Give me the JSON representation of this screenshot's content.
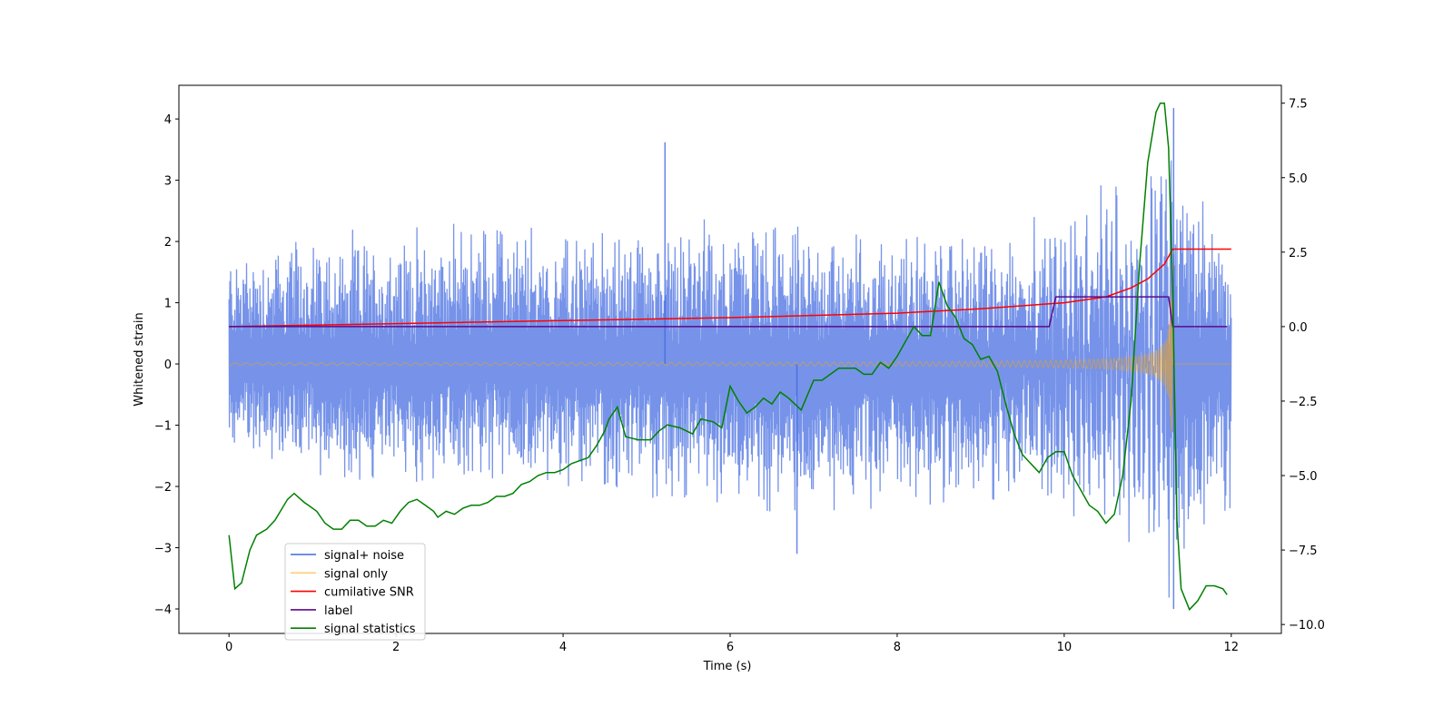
{
  "chart_data": {
    "type": "line",
    "xlabel": "Time (s)",
    "ylabel": "Whitened strain",
    "y2label": "",
    "xlim": [
      -0.6,
      12.6
    ],
    "ylim": [
      -4.4,
      4.55
    ],
    "y2lim": [
      -10.3,
      8.1
    ],
    "xticks": [
      0,
      2,
      4,
      6,
      8,
      10,
      12
    ],
    "yticks": [
      -4,
      -3,
      -2,
      -1,
      0,
      1,
      2,
      3,
      4
    ],
    "y2ticks": [
      -10.0,
      -7.5,
      -5.0,
      -2.5,
      0.0,
      2.5,
      5.0,
      7.5
    ],
    "y2tick_labels": [
      "−10.0",
      "−7.5",
      "−5.0",
      "−2.5",
      "0.0",
      "2.5",
      "5.0",
      "7.5"
    ],
    "legend_position": "lower-left",
    "colors": {
      "noise": "#4169e1",
      "signal": "#ffa500",
      "snr": "#ff0000",
      "label": "#5b0a8c",
      "stats": "#008000"
    },
    "series": [
      {
        "name": "signal+ noise",
        "axis": "left",
        "color": "#4169e1",
        "envelope": {
          "x": [
            0,
            1,
            2,
            3,
            4,
            5,
            6,
            7,
            8,
            9,
            10,
            11,
            11.3,
            12
          ],
          "upper": [
            2.3,
            2.5,
            2.5,
            2.8,
            2.6,
            2.6,
            2.8,
            2.6,
            2.5,
            2.6,
            2.6,
            2.7,
            4.2,
            2.2
          ],
          "lower": [
            -1.6,
            -2.2,
            -2.4,
            -2.3,
            -2.3,
            -2.7,
            -2.6,
            -3.1,
            -2.8,
            -2.6,
            -2.6,
            -2.7,
            -4.0,
            -2.7
          ]
        },
        "peaks": [
          {
            "x": 5.22,
            "y": 3.62
          },
          {
            "x": 6.8,
            "y": -3.1
          },
          {
            "x": 11.31,
            "y": 4.18
          },
          {
            "x": 11.31,
            "y": -4.0
          }
        ]
      },
      {
        "name": "signal only",
        "axis": "left",
        "color": "#ffa500",
        "chirp": {
          "t_merge": 11.3,
          "amp_end": 1.7,
          "end": 12
        }
      },
      {
        "name": "cumilative SNR",
        "axis": "right",
        "color": "#ff0000",
        "x": [
          0,
          2,
          4,
          6,
          8,
          9,
          10,
          10.5,
          10.8,
          11,
          11.2,
          11.3,
          12
        ],
        "values": [
          0.0,
          0.1,
          0.2,
          0.3,
          0.45,
          0.6,
          0.8,
          1.0,
          1.3,
          1.6,
          2.1,
          2.6,
          2.6
        ]
      },
      {
        "name": "label",
        "axis": "right",
        "color": "#5b0a8c",
        "x": [
          0,
          9.82,
          9.9,
          11.25,
          11.3,
          11.95
        ],
        "values": [
          0,
          0,
          1,
          1,
          0,
          0
        ]
      },
      {
        "name": "signal statistics",
        "axis": "right",
        "color": "#008000",
        "x": [
          0,
          0.07,
          0.15,
          0.25,
          0.33,
          0.45,
          0.55,
          0.7,
          0.78,
          0.9,
          0.95,
          1.05,
          1.15,
          1.25,
          1.35,
          1.45,
          1.55,
          1.65,
          1.75,
          1.85,
          1.95,
          2.05,
          2.15,
          2.25,
          2.35,
          2.45,
          2.5,
          2.6,
          2.7,
          2.8,
          2.9,
          3.0,
          3.1,
          3.2,
          3.3,
          3.4,
          3.5,
          3.6,
          3.7,
          3.8,
          3.9,
          4.0,
          4.1,
          4.2,
          4.3,
          4.4,
          4.5,
          4.55,
          4.65,
          4.75,
          4.9,
          5.05,
          5.15,
          5.25,
          5.4,
          5.55,
          5.65,
          5.8,
          5.9,
          6.0,
          6.1,
          6.2,
          6.3,
          6.4,
          6.5,
          6.6,
          6.7,
          6.85,
          7.0,
          7.1,
          7.2,
          7.3,
          7.4,
          7.5,
          7.6,
          7.7,
          7.8,
          7.9,
          8.0,
          8.1,
          8.2,
          8.3,
          8.4,
          8.5,
          8.6,
          8.7,
          8.8,
          8.9,
          9.0,
          9.1,
          9.2,
          9.3,
          9.4,
          9.5,
          9.6,
          9.7,
          9.8,
          9.9,
          10.0,
          10.1,
          10.2,
          10.3,
          10.4,
          10.5,
          10.6,
          10.7,
          10.8,
          10.9,
          11.0,
          11.1,
          11.15,
          11.2,
          11.25,
          11.3,
          11.35,
          11.4,
          11.5,
          11.6,
          11.7,
          11.8,
          11.9,
          11.95
        ],
        "values": [
          -7.0,
          -8.8,
          -8.6,
          -7.5,
          -7.0,
          -6.8,
          -6.5,
          -5.8,
          -5.6,
          -5.9,
          -6.0,
          -6.2,
          -6.6,
          -6.8,
          -6.8,
          -6.5,
          -6.5,
          -6.7,
          -6.7,
          -6.5,
          -6.6,
          -6.2,
          -5.9,
          -5.8,
          -6.0,
          -6.2,
          -6.4,
          -6.2,
          -6.3,
          -6.1,
          -6.0,
          -6.0,
          -5.9,
          -5.7,
          -5.7,
          -5.6,
          -5.3,
          -5.2,
          -5.0,
          -4.9,
          -4.9,
          -4.8,
          -4.6,
          -4.5,
          -4.4,
          -4.0,
          -3.5,
          -3.1,
          -2.7,
          -3.7,
          -3.8,
          -3.8,
          -3.5,
          -3.3,
          -3.4,
          -3.6,
          -3.1,
          -3.2,
          -3.4,
          -2.0,
          -2.5,
          -2.9,
          -2.7,
          -2.4,
          -2.6,
          -2.2,
          -2.4,
          -2.8,
          -1.8,
          -1.8,
          -1.6,
          -1.4,
          -1.4,
          -1.4,
          -1.6,
          -1.6,
          -1.2,
          -1.4,
          -1.0,
          -0.5,
          0.0,
          -0.3,
          -0.3,
          1.5,
          0.7,
          0.3,
          -0.4,
          -0.6,
          -1.1,
          -1.0,
          -1.5,
          -2.6,
          -3.6,
          -4.3,
          -4.6,
          -4.9,
          -4.4,
          -4.2,
          -4.2,
          -5.0,
          -5.5,
          -6.0,
          -6.2,
          -6.6,
          -6.3,
          -5.0,
          -2.5,
          2.0,
          5.5,
          7.2,
          7.5,
          7.5,
          6.0,
          1.0,
          -6.5,
          -8.8,
          -9.5,
          -9.2,
          -8.7,
          -8.7,
          -8.8,
          -9.0
        ]
      }
    ]
  }
}
